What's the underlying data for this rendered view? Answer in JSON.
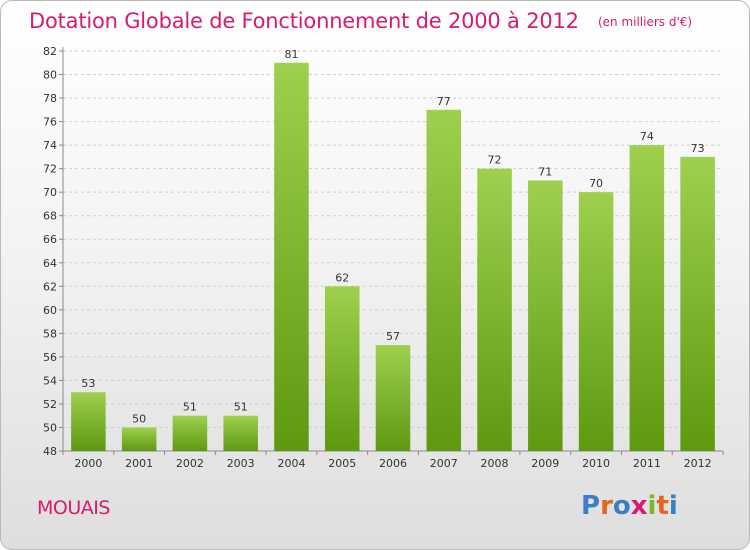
{
  "title": "Dotation Globale de Fonctionnement de 2000 à 2012",
  "unit": "(en milliers d'€)",
  "commune": "MOUAIS",
  "logo": {
    "text": "Proxiti",
    "letters": [
      "P",
      "r",
      "o",
      "x",
      "i",
      "t",
      "i"
    ],
    "colors": [
      "#3a7fc5",
      "#e8631c",
      "#3a7fc5",
      "#d81a70",
      "#78b82a",
      "#e8631c",
      "#3a7fc5"
    ]
  },
  "colors": {
    "title": "#d81a70",
    "bar_light": "#9ed04e",
    "bar_dark": "#5e9910",
    "grid": "#cfcfcf",
    "axis_text": "#333333"
  },
  "chart_data": {
    "type": "bar",
    "categories": [
      "2000",
      "2001",
      "2002",
      "2003",
      "2004",
      "2005",
      "2006",
      "2007",
      "2008",
      "2009",
      "2010",
      "2011",
      "2012"
    ],
    "values": [
      53,
      50,
      51,
      51,
      81,
      62,
      57,
      77,
      72,
      71,
      70,
      74,
      73
    ],
    "data_labels": [
      "53",
      "50",
      "51",
      "51",
      "81",
      "62",
      "57",
      "77",
      "72",
      "71",
      "70",
      "74",
      "73"
    ],
    "ylim": [
      48,
      82
    ],
    "yticks": [
      "48",
      "50",
      "52",
      "54",
      "56",
      "58",
      "60",
      "62",
      "64",
      "66",
      "68",
      "70",
      "72",
      "74",
      "76",
      "78",
      "80",
      "82"
    ],
    "grid": "horizontal dashed",
    "legend": "none"
  }
}
